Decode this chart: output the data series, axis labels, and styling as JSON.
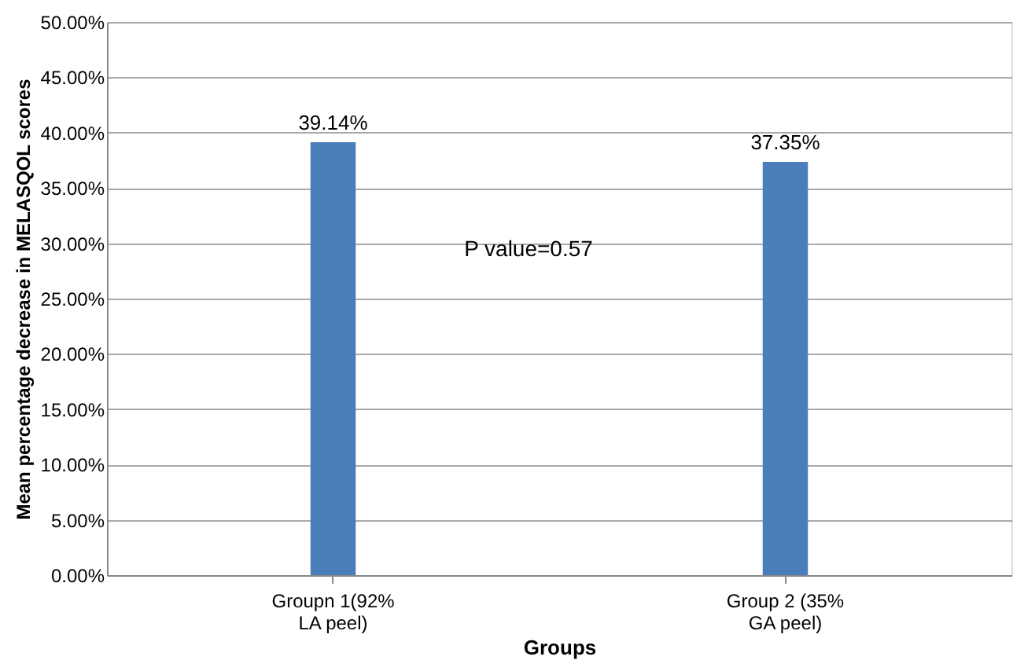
{
  "chart_data": {
    "type": "bar",
    "xlabel": "Groups",
    "ylabel": "Mean percentage decrease in MELASQOL scores",
    "categories": [
      "Groupn 1(92%\nLA peel)",
      "Group 2 (35%\nGA peel)"
    ],
    "values": [
      39.14,
      37.35
    ],
    "color": "#4a7ebb",
    "data_labels": true,
    "value_labels": [
      "39.14%",
      "37.35%"
    ],
    "ylim": [
      0,
      50
    ],
    "yticks": [
      {
        "value": 0,
        "label": "0.00%"
      },
      {
        "value": 5,
        "label": "5.00%"
      },
      {
        "value": 10,
        "label": "10.00%"
      },
      {
        "value": 15,
        "label": "15.00%"
      },
      {
        "value": 20,
        "label": "20.00%"
      },
      {
        "value": 25,
        "label": "25.00%"
      },
      {
        "value": 30,
        "label": "30.00%"
      },
      {
        "value": 35,
        "label": "35.00%"
      },
      {
        "value": 40,
        "label": "40.00%"
      },
      {
        "value": 45,
        "label": "45.00%"
      },
      {
        "value": 50,
        "label": "50.00%"
      }
    ],
    "grid": "y",
    "annotations": [
      "P value=0.57"
    ]
  }
}
